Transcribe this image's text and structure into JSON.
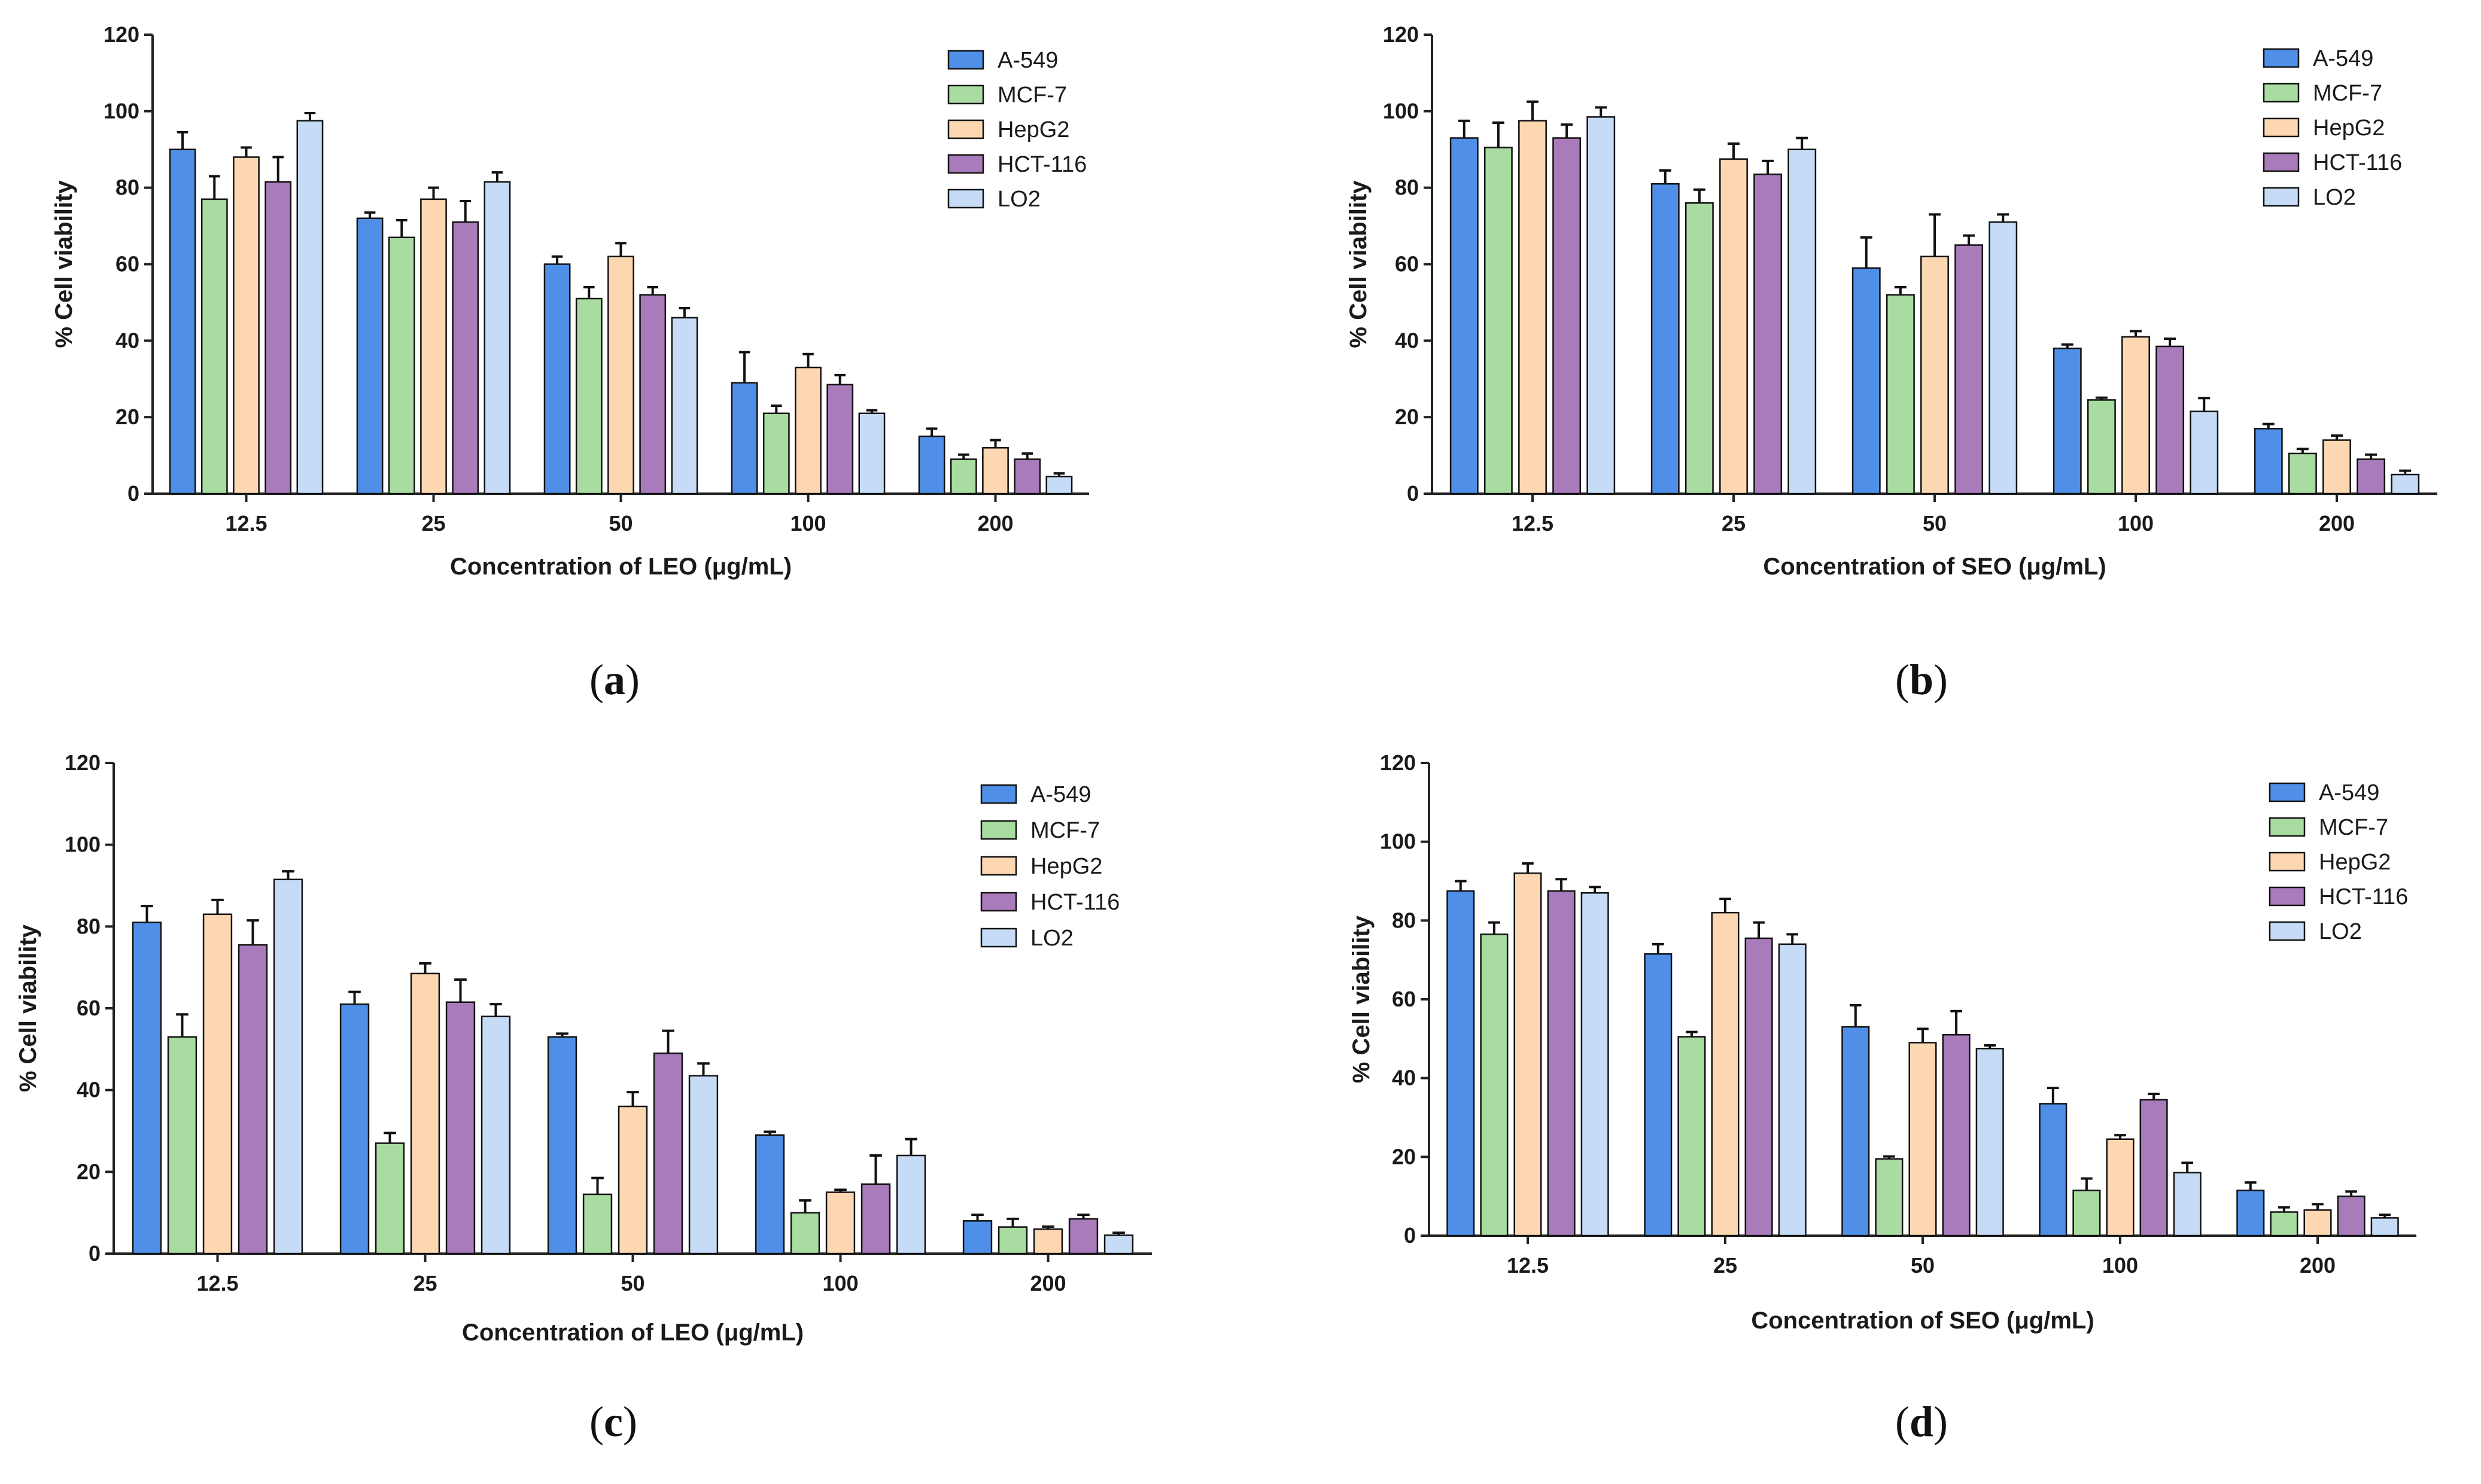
{
  "colors": {
    "A-549": "#4f8fe8",
    "MCF-7": "#a8dca0",
    "HepG2": "#fcd7b2",
    "HCT-116": "#a97bbb",
    "LO2": "#c6dcf6",
    "edge": "#111111",
    "axis": "#222222"
  },
  "captions": {
    "a": {
      "open": "(",
      "letter": "a",
      "close": ")"
    },
    "b": {
      "open": "(",
      "letter": "b",
      "close": ")"
    },
    "c": {
      "open": "(",
      "letter": "c",
      "close": ")"
    },
    "d": {
      "open": "(",
      "letter": "d",
      "close": ")"
    }
  },
  "chart_data": [
    {
      "id": "a",
      "type": "bar",
      "xlabel": "Concentration of LEO (μg/mL)",
      "ylabel": "% Cell viability",
      "ylim": [
        0,
        120
      ],
      "yticks": [
        "0",
        "20",
        "40",
        "60",
        "80",
        "100",
        "120"
      ],
      "categories": [
        "12.5",
        "25",
        "50",
        "100",
        "200"
      ],
      "legend_position": "top-right",
      "series": [
        {
          "name": "A-549",
          "values": [
            90,
            72,
            60,
            29,
            15
          ],
          "errors": [
            4.5,
            1.5,
            2,
            8,
            2
          ]
        },
        {
          "name": "MCF-7",
          "values": [
            77,
            67,
            51,
            21,
            9
          ],
          "errors": [
            6,
            4.5,
            3,
            2,
            1.2
          ]
        },
        {
          "name": "HepG2",
          "values": [
            88,
            77,
            62,
            33,
            12
          ],
          "errors": [
            2.5,
            3,
            3.5,
            3.5,
            2
          ]
        },
        {
          "name": "HCT-116",
          "values": [
            81.5,
            71,
            52,
            28.5,
            9
          ],
          "errors": [
            6.5,
            5.5,
            2,
            2.5,
            1.5
          ]
        },
        {
          "name": "LO2",
          "values": [
            97.5,
            81.5,
            46,
            21,
            4.5
          ],
          "errors": [
            2,
            2.5,
            2.5,
            0.8,
            0.8
          ]
        }
      ]
    },
    {
      "id": "b",
      "type": "bar",
      "xlabel": "Concentration of SEO (μg/mL)",
      "ylabel": "% Cell viability",
      "ylim": [
        0,
        120
      ],
      "yticks": [
        "0",
        "20",
        "40",
        "60",
        "80",
        "100",
        "120"
      ],
      "categories": [
        "12.5",
        "25",
        "50",
        "100",
        "200"
      ],
      "legend_position": "top-right",
      "series": [
        {
          "name": "A-549",
          "values": [
            93,
            81,
            59,
            38,
            17
          ],
          "errors": [
            4.5,
            3.5,
            8,
            1,
            1.2
          ]
        },
        {
          "name": "MCF-7",
          "values": [
            90.5,
            76,
            52,
            24.5,
            10.5
          ],
          "errors": [
            6.5,
            3.5,
            2,
            0.6,
            1.2
          ]
        },
        {
          "name": "HepG2",
          "values": [
            97.5,
            87.5,
            62,
            41,
            14
          ],
          "errors": [
            5,
            4,
            11,
            1.5,
            1.2
          ]
        },
        {
          "name": "HCT-116",
          "values": [
            93,
            83.5,
            65,
            38.5,
            9
          ],
          "errors": [
            3.5,
            3.5,
            2.5,
            2,
            1.2
          ]
        },
        {
          "name": "LO2",
          "values": [
            98.5,
            90,
            71,
            21.5,
            5
          ],
          "errors": [
            2.5,
            3,
            2,
            3.5,
            1
          ]
        }
      ]
    },
    {
      "id": "c",
      "type": "bar",
      "xlabel": "Concentration of LEO (μg/mL)",
      "ylabel": "% Cell viability",
      "ylim": [
        0,
        120
      ],
      "yticks": [
        "0",
        "20",
        "40",
        "60",
        "80",
        "100",
        "120"
      ],
      "categories": [
        "12.5",
        "25",
        "50",
        "100",
        "200"
      ],
      "legend_position": "top-right",
      "series": [
        {
          "name": "A-549",
          "values": [
            81,
            61,
            53,
            29,
            8
          ],
          "errors": [
            4,
            3,
            0.8,
            0.8,
            1.5
          ]
        },
        {
          "name": "MCF-7",
          "values": [
            53,
            27,
            14.5,
            10,
            6.5
          ],
          "errors": [
            5.5,
            2.5,
            4,
            3,
            2
          ]
        },
        {
          "name": "HepG2",
          "values": [
            83,
            68.5,
            36,
            15,
            6
          ],
          "errors": [
            3.5,
            2.5,
            3.5,
            0.6,
            0.6
          ]
        },
        {
          "name": "HCT-116",
          "values": [
            75.5,
            61.5,
            49,
            17,
            8.5
          ],
          "errors": [
            6,
            5.5,
            5.5,
            7,
            1
          ]
        },
        {
          "name": "LO2",
          "values": [
            91.5,
            58,
            43.5,
            24,
            4.5
          ],
          "errors": [
            2,
            3,
            3,
            4,
            0.6
          ]
        }
      ]
    },
    {
      "id": "d",
      "type": "bar",
      "xlabel": "Concentration of SEO (μg/mL)",
      "ylabel": "% Cell viability",
      "ylim": [
        0,
        120
      ],
      "yticks": [
        "0",
        "20",
        "40",
        "60",
        "80",
        "100",
        "120"
      ],
      "categories": [
        "12.5",
        "25",
        "50",
        "100",
        "200"
      ],
      "legend_position": "top-right",
      "series": [
        {
          "name": "A-549",
          "values": [
            87.5,
            71.5,
            53,
            33.5,
            11.5
          ],
          "errors": [
            2.5,
            2.5,
            5.5,
            4,
            2
          ]
        },
        {
          "name": "MCF-7",
          "values": [
            76.5,
            50.5,
            19.5,
            11.5,
            6
          ],
          "errors": [
            3,
            1.2,
            0.6,
            3,
            1.2
          ]
        },
        {
          "name": "HepG2",
          "values": [
            92,
            82,
            49,
            24.5,
            6.5
          ],
          "errors": [
            2.5,
            3.5,
            3.5,
            1,
            1.5
          ]
        },
        {
          "name": "HCT-116",
          "values": [
            87.5,
            75.5,
            51,
            34.5,
            10
          ],
          "errors": [
            3,
            4,
            6,
            1.5,
            1.2
          ]
        },
        {
          "name": "LO2",
          "values": [
            87,
            74,
            47.5,
            16,
            4.5
          ],
          "errors": [
            1.5,
            2.5,
            0.8,
            2.5,
            0.8
          ]
        }
      ]
    }
  ]
}
